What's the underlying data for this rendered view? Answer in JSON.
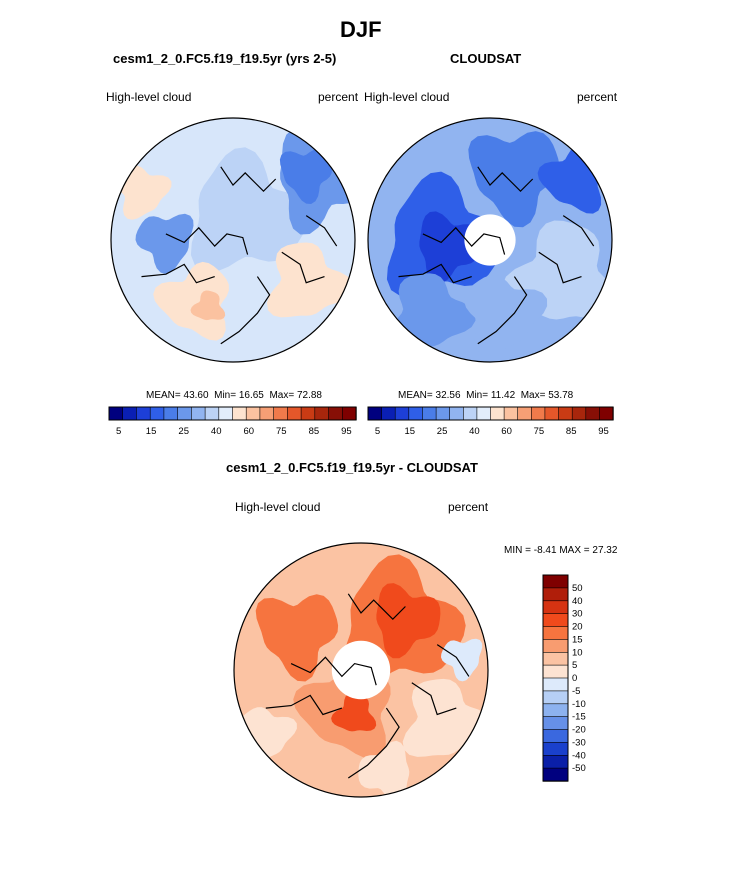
{
  "chart_data": [
    {
      "type": "heatmap",
      "projection": "north-polar-stereographic",
      "title": "DJF",
      "subtitle": "cesm1_2_0.FC5.f19_f19.5yr (yrs 2-5)",
      "left_label": "High-level cloud",
      "right_label": "percent",
      "stats": {
        "mean": "43.60",
        "min": "16.65",
        "max": "72.88"
      },
      "stats_text": {
        "mean_label": "MEAN=",
        "min_label": "Min=",
        "max_label": "Max="
      },
      "colorbar": {
        "levels": [
          5,
          10,
          15,
          20,
          25,
          30,
          35,
          40,
          50,
          60,
          65,
          70,
          75,
          80,
          85,
          90,
          95
        ],
        "tick_labels": [
          "5",
          "15",
          "25",
          "40",
          "60",
          "75",
          "85",
          "95"
        ],
        "colors": [
          "#00007f",
          "#0a1fb4",
          "#1d3fd7",
          "#2f5fe8",
          "#4a7de8",
          "#6b98eb",
          "#91b4f0",
          "#bcd3f6",
          "#e2edfb",
          "#fde3cf",
          "#fbc2a0",
          "#f69f75",
          "#f07a4b",
          "#e4572a",
          "#c93b14",
          "#a8260c",
          "#870f06",
          "#7f0000"
        ]
      }
    },
    {
      "type": "heatmap",
      "projection": "north-polar-stereographic",
      "subtitle": "CLOUDSAT",
      "left_label": "High-level cloud",
      "right_label": "percent",
      "stats": {
        "mean": "32.56",
        "min": "11.42",
        "max": "53.78"
      },
      "stats_text": {
        "mean_label": "MEAN=",
        "min_label": "Min=",
        "max_label": "Max="
      },
      "colorbar": {
        "levels": [
          5,
          10,
          15,
          20,
          25,
          30,
          35,
          40,
          50,
          60,
          65,
          70,
          75,
          80,
          85,
          90,
          95
        ],
        "tick_labels": [
          "5",
          "15",
          "25",
          "40",
          "60",
          "75",
          "85",
          "95"
        ],
        "colors": [
          "#00007f",
          "#0a1fb4",
          "#1d3fd7",
          "#2f5fe8",
          "#4a7de8",
          "#6b98eb",
          "#91b4f0",
          "#bcd3f6",
          "#e2edfb",
          "#fde3cf",
          "#fbc2a0",
          "#f69f75",
          "#f07a4b",
          "#e4572a",
          "#c93b14",
          "#a8260c",
          "#870f06",
          "#7f0000"
        ]
      }
    },
    {
      "type": "heatmap",
      "projection": "north-polar-stereographic",
      "subtitle": "cesm1_2_0.FC5.f19_f19.5yr - CLOUDSAT",
      "left_label": "High-level cloud",
      "right_label": "percent",
      "stats": {
        "min": "-8.41",
        "max": "27.32"
      },
      "stats_text": {
        "min_label": "MIN =",
        "max_label": "MAX ="
      },
      "colorbar": {
        "orientation": "vertical",
        "tick_labels": [
          "50",
          "40",
          "30",
          "20",
          "15",
          "10",
          "5",
          "0",
          "-5",
          "-10",
          "-15",
          "-20",
          "-30",
          "-40",
          "-50"
        ],
        "colors": [
          "#7f0000",
          "#b01e0a",
          "#d63312",
          "#f04a1c",
          "#f6743f",
          "#f89c70",
          "#fbc3a3",
          "#fde3d2",
          "#ddeafb",
          "#b6cff5",
          "#8db2ef",
          "#6690e8",
          "#3a68df",
          "#1a40cc",
          "#0a1fa8",
          "#00007f"
        ]
      }
    }
  ]
}
